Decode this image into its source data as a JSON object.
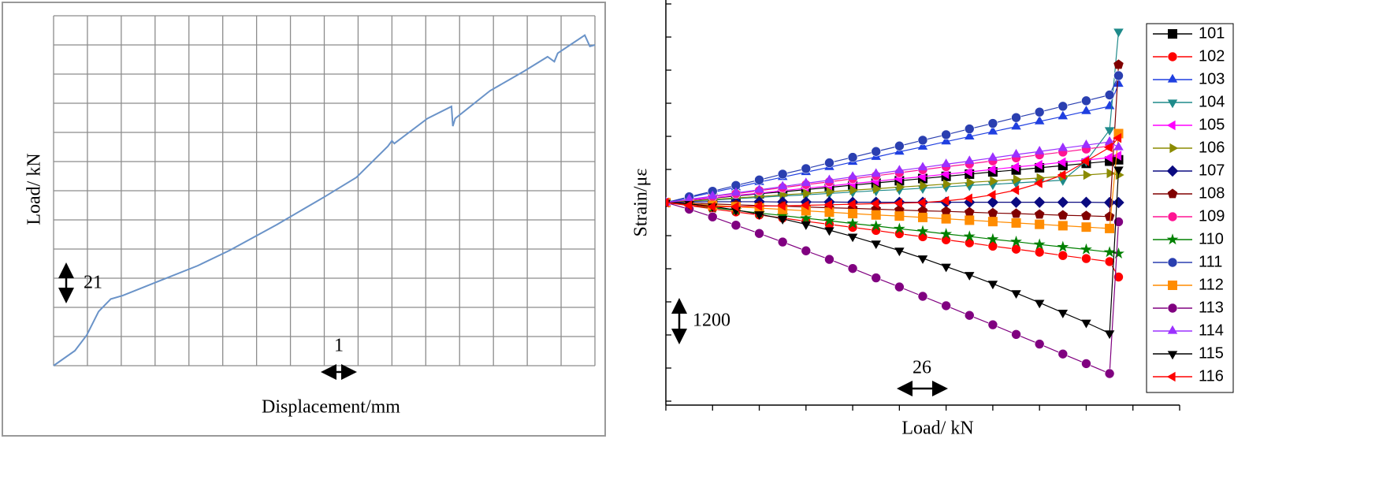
{
  "chart_data": [
    {
      "type": "line",
      "xlabel": "Displacement/mm",
      "ylabel": "Load/ kN",
      "annotations": [
        "21",
        "1"
      ],
      "x": [
        0,
        0.63,
        0.98,
        1.33,
        1.69,
        2.04,
        3.09,
        4.26,
        5.2,
        6.6,
        8.0,
        8.95,
        9.88,
        10.0,
        10.07,
        11.05,
        11.76,
        11.8,
        11.87,
        12.9,
        13.9,
        14.6,
        14.8,
        14.9,
        15.7,
        15.85,
        16.0
      ],
      "values": [
        0,
        10.8,
        22,
        39,
        48,
        50.5,
        60.7,
        72,
        83,
        101.6,
        121.5,
        135.6,
        158,
        162,
        160,
        178,
        186.7,
        172.5,
        178,
        198,
        212,
        222.5,
        219,
        225,
        238,
        230,
        231
      ],
      "color": "#6a93c8",
      "xlim": [
        0,
        16
      ],
      "ylim": [
        0,
        252
      ],
      "xticks": [
        0,
        1,
        2,
        3,
        4,
        5,
        6,
        7,
        8,
        9,
        10,
        11,
        12,
        13,
        14,
        15,
        16
      ],
      "yticks": [
        0,
        21,
        42,
        63,
        84,
        105,
        126,
        147,
        168,
        189,
        210,
        231,
        252
      ],
      "grid": true
    },
    {
      "type": "line",
      "xlabel": "Load/ kN",
      "ylabel": "Strain/με",
      "annotations": [
        "1200",
        "26"
      ],
      "legend": "right",
      "x": [
        0,
        13,
        26,
        39,
        52,
        65,
        78,
        91,
        104,
        117,
        130,
        143,
        156,
        169,
        182,
        195,
        208,
        221,
        234,
        247,
        252
      ],
      "xlim": [
        0,
        286
      ],
      "ylim": [
        -7200,
        7200
      ],
      "xticks": [
        0,
        26,
        52,
        78,
        104,
        130,
        156,
        182,
        208,
        234,
        260,
        286
      ],
      "yticks": [
        -7200,
        -6000,
        -4800,
        -3600,
        -2400,
        -1200,
        0,
        1200,
        2400,
        3600,
        4800,
        6000,
        7200
      ],
      "grid": false,
      "series": [
        {
          "name": "101",
          "color": "#000000",
          "marker": "square",
          "values": [
            0,
            80,
            160,
            240,
            320,
            390,
            470,
            550,
            630,
            710,
            790,
            870,
            950,
            1030,
            1110,
            1180,
            1260,
            1340,
            1420,
            1500,
            1550
          ]
        },
        {
          "name": "102",
          "color": "#ff0000",
          "marker": "circle",
          "values": [
            0,
            -110,
            -230,
            -340,
            -450,
            -560,
            -680,
            -790,
            -900,
            -1010,
            -1130,
            -1240,
            -1350,
            -1460,
            -1580,
            -1690,
            -1800,
            -1920,
            -2030,
            -2140,
            -2700
          ]
        },
        {
          "name": "103",
          "color": "#1f3fe0",
          "marker": "triangle-up",
          "values": [
            0,
            180,
            370,
            550,
            740,
            920,
            1100,
            1280,
            1470,
            1650,
            1840,
            2020,
            2210,
            2390,
            2570,
            2750,
            2940,
            3120,
            3310,
            3490,
            4300
          ]
        },
        {
          "name": "104",
          "color": "#1e8a8a",
          "marker": "triangle-down",
          "values": [
            0,
            50,
            90,
            140,
            190,
            240,
            280,
            330,
            380,
            430,
            470,
            520,
            570,
            620,
            660,
            710,
            760,
            810,
            1500,
            2630,
            6200
          ]
        },
        {
          "name": "105",
          "color": "#ff00ff",
          "marker": "triangle-left",
          "values": [
            0,
            90,
            170,
            260,
            340,
            430,
            520,
            600,
            690,
            770,
            860,
            940,
            1030,
            1110,
            1200,
            1290,
            1370,
            1460,
            1540,
            1630,
            1700
          ]
        },
        {
          "name": "106",
          "color": "#8b8b00",
          "marker": "triangle-right",
          "values": [
            0,
            60,
            110,
            170,
            220,
            280,
            330,
            390,
            450,
            500,
            560,
            610,
            670,
            730,
            780,
            840,
            890,
            950,
            1000,
            1060,
            1000
          ]
        },
        {
          "name": "107",
          "color": "#0a0a80",
          "marker": "diamond",
          "values": [
            0,
            20,
            30,
            30,
            30,
            20,
            20,
            20,
            10,
            10,
            10,
            10,
            10,
            10,
            10,
            10,
            10,
            10,
            10,
            0,
            0
          ]
        },
        {
          "name": "108",
          "color": "#800000",
          "marker": "pentagon",
          "values": [
            0,
            -30,
            -50,
            -80,
            -110,
            -130,
            -160,
            -190,
            -210,
            -240,
            -270,
            -300,
            -320,
            -350,
            -380,
            -400,
            -430,
            -460,
            -480,
            -510,
            5000
          ]
        },
        {
          "name": "109",
          "color": "#ff1493",
          "marker": "circle",
          "values": [
            0,
            110,
            220,
            320,
            430,
            540,
            650,
            750,
            860,
            970,
            1080,
            1190,
            1300,
            1400,
            1510,
            1620,
            1730,
            1830,
            1940,
            2050,
            2500
          ]
        },
        {
          "name": "110",
          "color": "#008000",
          "marker": "star",
          "values": [
            0,
            -90,
            -190,
            -280,
            -380,
            -470,
            -570,
            -660,
            -760,
            -850,
            -950,
            -1040,
            -1140,
            -1230,
            -1330,
            -1420,
            -1520,
            -1610,
            -1700,
            -1800,
            -1850
          ]
        },
        {
          "name": "111",
          "color": "#2a3fb0",
          "marker": "circle",
          "values": [
            0,
            210,
            410,
            620,
            820,
            1030,
            1230,
            1440,
            1640,
            1850,
            2050,
            2260,
            2460,
            2670,
            2870,
            3080,
            3280,
            3490,
            3690,
            3900,
            4600
          ]
        },
        {
          "name": "112",
          "color": "#ff8c00",
          "marker": "square",
          "values": [
            0,
            -50,
            -100,
            -150,
            -200,
            -250,
            -300,
            -350,
            -400,
            -450,
            -490,
            -540,
            -590,
            -640,
            -690,
            -740,
            -790,
            -840,
            -890,
            -940,
            2500
          ]
        },
        {
          "name": "113",
          "color": "#800080",
          "marker": "circle",
          "values": [
            0,
            -240,
            -520,
            -820,
            -1120,
            -1430,
            -1750,
            -2060,
            -2390,
            -2730,
            -3060,
            -3400,
            -3740,
            -4090,
            -4430,
            -4780,
            -5130,
            -5490,
            -5840,
            -6200,
            -700
          ]
        },
        {
          "name": "114",
          "color": "#9b30ff",
          "marker": "triangle-up",
          "values": [
            0,
            120,
            230,
            350,
            460,
            580,
            700,
            810,
            930,
            1040,
            1160,
            1270,
            1390,
            1500,
            1620,
            1740,
            1850,
            1970,
            2080,
            2200,
            2000
          ]
        },
        {
          "name": "115",
          "color": "#000000",
          "marker": "triangle-down",
          "values": [
            0,
            -50,
            -140,
            -270,
            -420,
            -590,
            -790,
            -1000,
            -1230,
            -1480,
            -1740,
            -2020,
            -2320,
            -2620,
            -2940,
            -3280,
            -3630,
            -3990,
            -4350,
            -4740,
            1200
          ]
        },
        {
          "name": "116",
          "color": "#ff0000",
          "marker": "triangle-left",
          "values": [
            0,
            -100,
            -150,
            -150,
            -130,
            -120,
            -100,
            -80,
            -60,
            -40,
            -20,
            0,
            60,
            150,
            280,
            450,
            700,
            1000,
            1500,
            2000,
            2340
          ]
        }
      ]
    }
  ]
}
